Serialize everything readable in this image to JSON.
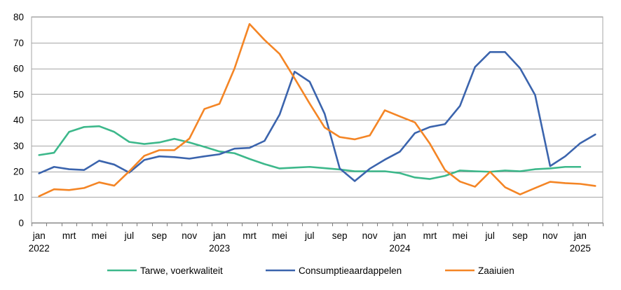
{
  "chart_data": {
    "type": "line",
    "title": "",
    "xlabel": "",
    "ylabel": "",
    "ylim": [
      0,
      80
    ],
    "yticks": [
      0,
      10,
      20,
      30,
      40,
      50,
      60,
      70,
      80
    ],
    "grid": "horizontal",
    "legend": "bottom",
    "x_labels": [
      {
        "index": 0,
        "month": "jan",
        "year": "2022"
      },
      {
        "index": 2,
        "month": "mrt",
        "year": ""
      },
      {
        "index": 4,
        "month": "mei",
        "year": ""
      },
      {
        "index": 6,
        "month": "jul",
        "year": ""
      },
      {
        "index": 8,
        "month": "sep",
        "year": ""
      },
      {
        "index": 10,
        "month": "nov",
        "year": ""
      },
      {
        "index": 12,
        "month": "jan",
        "year": "2023"
      },
      {
        "index": 14,
        "month": "mrt",
        "year": ""
      },
      {
        "index": 16,
        "month": "mei",
        "year": ""
      },
      {
        "index": 18,
        "month": "jul",
        "year": ""
      },
      {
        "index": 20,
        "month": "sep",
        "year": ""
      },
      {
        "index": 22,
        "month": "nov",
        "year": ""
      },
      {
        "index": 24,
        "month": "jan",
        "year": "2024"
      },
      {
        "index": 26,
        "month": "mrt",
        "year": ""
      },
      {
        "index": 28,
        "month": "mei",
        "year": ""
      },
      {
        "index": 30,
        "month": "jul",
        "year": ""
      },
      {
        "index": 32,
        "month": "sep",
        "year": ""
      },
      {
        "index": 34,
        "month": "nov",
        "year": ""
      },
      {
        "index": 36,
        "month": "jan",
        "year": "2025"
      }
    ],
    "period_count": 38,
    "series": [
      {
        "name": "Tarwe, voerkwaliteit",
        "color": "#3db88b",
        "values": [
          26.3,
          27.2,
          35.3,
          37.2,
          37.5,
          35.3,
          31.4,
          30.6,
          31.2,
          32.6,
          31.2,
          29.5,
          27.7,
          27.0,
          24.8,
          22.8,
          21.1,
          21.4,
          21.7,
          21.2,
          20.7,
          20.0,
          20.0,
          20.0,
          19.3,
          17.6,
          17.0,
          18.2,
          20.3,
          20.0,
          19.8,
          20.3,
          20.0,
          20.8,
          21.1,
          21.7,
          21.7,
          null
        ]
      },
      {
        "name": "Consumptieaardappelen",
        "color": "#3b64ad",
        "values": [
          19.2,
          21.7,
          20.8,
          20.5,
          24.1,
          22.6,
          19.5,
          24.4,
          25.8,
          25.5,
          24.9,
          25.8,
          26.6,
          28.8,
          29.1,
          31.8,
          42.0,
          58.7,
          54.8,
          42.3,
          21.1,
          16.2,
          21.0,
          24.5,
          27.6,
          34.8,
          37.2,
          38.3,
          45.4,
          60.5,
          66.3,
          66.3,
          60.0,
          49.6,
          22.0,
          25.8,
          30.9,
          34.3
        ]
      },
      {
        "name": "Zaaiuien",
        "color": "#f48525",
        "values": [
          10.3,
          13.0,
          12.7,
          13.5,
          15.7,
          14.4,
          20.0,
          26.0,
          28.2,
          28.2,
          32.7,
          44.2,
          46.2,
          59.9,
          77.2,
          71.0,
          65.6,
          56.1,
          46.3,
          37.0,
          33.3,
          32.4,
          33.9,
          43.7,
          41.3,
          39.0,
          30.7,
          20.5,
          16.0,
          14.0,
          19.8,
          13.8,
          11.0,
          13.5,
          15.9,
          15.4,
          15.1,
          14.3
        ]
      }
    ]
  }
}
